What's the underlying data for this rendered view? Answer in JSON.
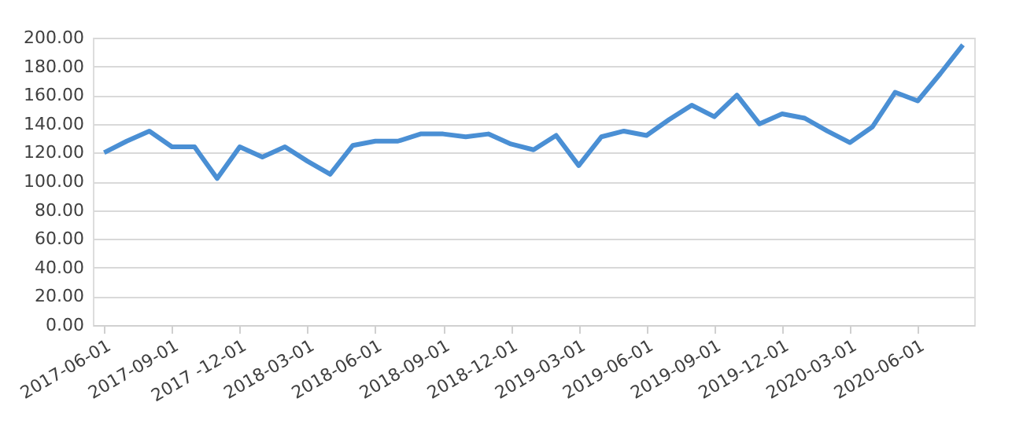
{
  "chart_data": {
    "type": "line",
    "categories": [
      "2017-06-01",
      null,
      null,
      "2017-09-01",
      null,
      null,
      "2017 -12-01",
      null,
      null,
      "2018-03-01",
      null,
      null,
      "2018-06-01",
      null,
      null,
      "2018-09-01",
      null,
      null,
      "2018-12-01",
      null,
      null,
      "2019-03-01",
      null,
      null,
      "2019-06-01",
      null,
      null,
      "2019-09-01",
      null,
      null,
      "2019-12-01",
      null,
      null,
      "2020-03-01",
      null,
      null,
      "2020-06-01",
      null,
      null
    ],
    "series": [
      {
        "color": "#4a8fd4",
        "values": [
          120,
          128,
          135,
          124,
          124,
          102,
          124,
          117,
          124,
          114,
          105,
          125,
          128,
          128,
          133,
          133,
          131,
          133,
          126,
          122,
          132,
          111,
          131,
          135,
          132,
          143,
          153,
          145,
          160,
          140,
          147,
          144,
          135,
          127,
          138,
          162,
          156,
          175,
          195
        ]
      }
    ],
    "ylim": [
      0,
      200
    ],
    "yticks": [
      {
        "value": 0,
        "label": "0.00"
      },
      {
        "value": 20,
        "label": "20.00"
      },
      {
        "value": 40,
        "label": "40.00"
      },
      {
        "value": 60,
        "label": "60.00"
      },
      {
        "value": 80,
        "label": "80.00"
      },
      {
        "value": 100,
        "label": "100.00"
      },
      {
        "value": 120,
        "label": "120.00"
      },
      {
        "value": 140,
        "label": "140.00"
      },
      {
        "value": 160,
        "label": "160.00"
      },
      {
        "value": 180,
        "label": "180.00"
      },
      {
        "value": 200,
        "label": "200.00"
      }
    ],
    "grid": "y",
    "marker": "none",
    "line_style": "solid"
  }
}
